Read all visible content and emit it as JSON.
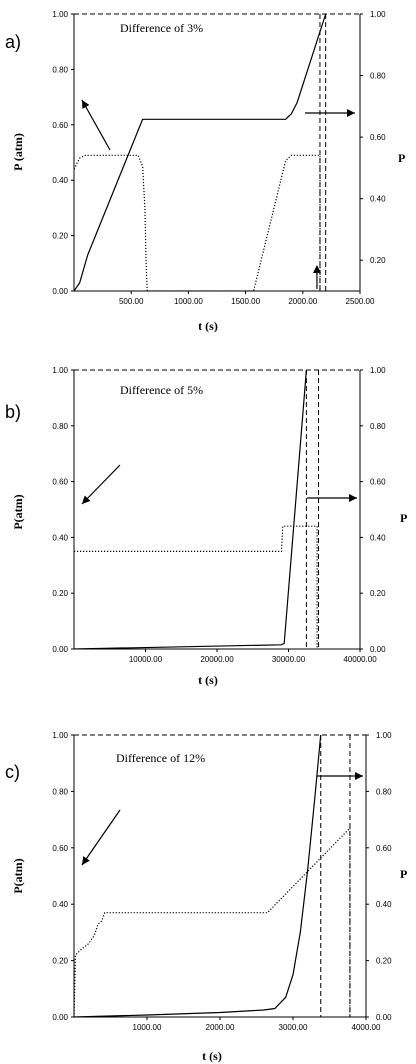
{
  "chart_data": [
    {
      "type": "line",
      "panel_label": "a)",
      "annotation": "Difference of 3%",
      "xlabel": "t (s)",
      "ylabel": "P (atm)",
      "y2label": "P",
      "xlim": [
        0,
        2500
      ],
      "ylim": [
        0,
        1
      ],
      "y2lim": [
        0.1,
        1.0
      ],
      "x_ticks": [
        "500.00",
        "1000.00",
        "1500.00",
        "2000.00",
        "2500.00"
      ],
      "x_tick_values": [
        500,
        1000,
        1500,
        2000,
        2500
      ],
      "y_ticks": [
        "0.00",
        "0.20",
        "0.40",
        "0.60",
        "0.80",
        "1.00"
      ],
      "y_tick_values": [
        0,
        0.2,
        0.4,
        0.6,
        0.8,
        1.0
      ],
      "y2_ticks": [
        "0.20",
        "0.40",
        "0.60",
        "0.80",
        "1.00"
      ],
      "y2_tick_values": [
        0.2,
        0.4,
        0.6,
        0.8,
        1.0
      ],
      "series": [
        {
          "style": "solid",
          "axis": "left",
          "points": [
            [
              0,
              0
            ],
            [
              50,
              0.03
            ],
            [
              120,
              0.13
            ],
            [
              600,
              0.62
            ],
            [
              1850,
              0.62
            ],
            [
              1900,
              0.64
            ],
            [
              1950,
              0.68
            ],
            [
              2200,
              1.0
            ]
          ]
        },
        {
          "style": "dotted",
          "axis": "left",
          "points": [
            [
              0,
              0.44
            ],
            [
              50,
              0.48
            ],
            [
              100,
              0.49
            ],
            [
              560,
              0.49
            ],
            [
              600,
              0.45
            ],
            [
              620,
              0.3
            ],
            [
              630,
              0.1
            ],
            [
              640,
              0.0
            ],
            [
              1570,
              0.0
            ],
            [
              1850,
              0.47
            ],
            [
              1900,
              0.49
            ],
            [
              2150,
              0.49
            ],
            [
              2150,
              0.0
            ]
          ]
        }
      ],
      "guides": {
        "hline_top": 1.0,
        "dashed_vlines": [
          2150,
          2200
        ],
        "arrow_up_at_x": 2150
      },
      "arrow_axis": "right"
    },
    {
      "type": "line",
      "panel_label": "b)",
      "annotation": "Difference of 5%",
      "xlabel": "t (s)",
      "ylabel": "P(atm)",
      "y2label": "P",
      "xlim": [
        0,
        40000
      ],
      "ylim": [
        0,
        1
      ],
      "y2lim": [
        0,
        1
      ],
      "x_ticks": [
        "10000.00",
        "20000.00",
        "30000.00",
        "40000.00"
      ],
      "x_tick_values": [
        10000,
        20000,
        30000,
        40000
      ],
      "y_ticks": [
        "0.00",
        "0.20",
        "0.40",
        "0.60",
        "0.80",
        "1.00"
      ],
      "y_tick_values": [
        0,
        0.2,
        0.4,
        0.6,
        0.8,
        1.0
      ],
      "y2_ticks": [
        "0.00",
        "0.20",
        "0.40",
        "0.60",
        "0.80",
        "1.00"
      ],
      "y2_tick_values": [
        0,
        0.2,
        0.4,
        0.6,
        0.8,
        1.0
      ],
      "series": [
        {
          "style": "solid",
          "axis": "left",
          "points": [
            [
              0,
              0.0
            ],
            [
              29000,
              0.015
            ],
            [
              29400,
              0.02
            ],
            [
              32500,
              1.0
            ]
          ]
        },
        {
          "style": "dotted",
          "axis": "left",
          "points": [
            [
              0,
              0.35
            ],
            [
              29000,
              0.35
            ],
            [
              29200,
              0.44
            ],
            [
              34000,
              0.44
            ],
            [
              34000,
              0.0
            ]
          ]
        }
      ],
      "guides": {
        "hline_top": 1.0,
        "dashed_vlines": [
          32500,
          34200
        ]
      },
      "arrow_axis": "right"
    },
    {
      "type": "line",
      "panel_label": "c)",
      "annotation": "Difference of 12%",
      "xlabel": "t (s)",
      "ylabel": "P(atm)",
      "y2label": "P",
      "xlim": [
        0,
        4000
      ],
      "ylim": [
        0,
        1
      ],
      "y2lim": [
        0,
        1
      ],
      "x_ticks": [
        "1000.00",
        "2000.00",
        "3000.00",
        "4000.00"
      ],
      "x_tick_values": [
        1000,
        2000,
        3000,
        4000
      ],
      "y_ticks": [
        "0.00",
        "0.20",
        "0.40",
        "0.60",
        "0.80",
        "1.00"
      ],
      "y_tick_values": [
        0,
        0.2,
        0.4,
        0.6,
        0.8,
        1.0
      ],
      "y2_ticks": [
        "0.00",
        "0.20",
        "0.40",
        "0.60",
        "0.80",
        "1.00"
      ],
      "y2_tick_values": [
        0,
        0.2,
        0.4,
        0.6,
        0.8,
        1.0
      ],
      "series": [
        {
          "style": "solid",
          "axis": "left",
          "points": [
            [
              0,
              0.0
            ],
            [
              1000,
              0.007
            ],
            [
              2000,
              0.016
            ],
            [
              2600,
              0.025
            ],
            [
              2750,
              0.03
            ],
            [
              2900,
              0.07
            ],
            [
              3000,
              0.15
            ],
            [
              3100,
              0.3
            ],
            [
              3200,
              0.52
            ],
            [
              3300,
              0.78
            ],
            [
              3380,
              1.0
            ]
          ]
        },
        {
          "style": "dotted",
          "axis": "left",
          "points": [
            [
              0,
              0.0
            ],
            [
              20,
              0.22
            ],
            [
              100,
              0.24
            ],
            [
              200,
              0.26
            ],
            [
              280,
              0.29
            ],
            [
              330,
              0.33
            ],
            [
              380,
              0.34
            ],
            [
              420,
              0.37
            ],
            [
              480,
              0.37
            ],
            [
              2650,
              0.37
            ],
            [
              3780,
              0.67
            ],
            [
              3780,
              0.0
            ]
          ]
        }
      ],
      "guides": {
        "hline_top": 1.0,
        "dashed_vlines": [
          3380,
          3780
        ]
      },
      "arrow_axis": "right"
    }
  ]
}
